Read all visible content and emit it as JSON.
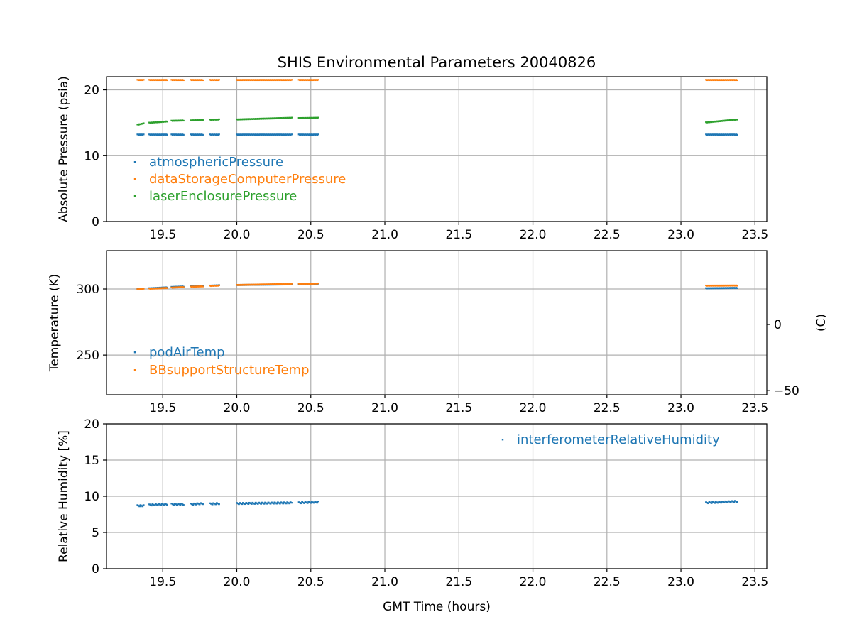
{
  "chart_data": {
    "type": "scatter",
    "title": "SHIS Environmental Parameters 20040826",
    "xlabel": "GMT Time (hours)",
    "xlim": [
      19.12,
      23.58
    ],
    "xticks": [
      19.5,
      20.0,
      20.5,
      21.0,
      21.5,
      22.0,
      22.5,
      23.0,
      23.5
    ],
    "xtick_labels": [
      "19.5",
      "20.0",
      "20.5",
      "21.0",
      "21.5",
      "22.0",
      "22.5",
      "23.0",
      "23.5"
    ],
    "grid": true,
    "time_segments": [
      [
        19.33,
        19.37
      ],
      [
        19.41,
        19.53
      ],
      [
        19.56,
        19.64
      ],
      [
        19.69,
        19.77
      ],
      [
        19.82,
        19.88
      ],
      [
        20.0,
        20.37
      ],
      [
        20.42,
        20.55
      ],
      [
        23.17,
        23.38
      ]
    ],
    "panels": [
      {
        "id": "pressure",
        "ylabel": "Absolute Pressure (psia)",
        "ylim": [
          0,
          22
        ],
        "yticks": [
          0,
          10,
          20
        ],
        "ytick_labels": [
          "0",
          "10",
          "20"
        ],
        "legend_location": "lower-left",
        "series": [
          {
            "name": "atmosphericPressure",
            "color": "#1f77b4",
            "y": [
              13.2,
              13.2,
              13.2,
              13.2,
              13.2,
              13.2,
              13.2,
              13.2
            ],
            "y_end": [
              13.2,
              13.2,
              13.2,
              13.2,
              13.2,
              13.2,
              13.2,
              13.2
            ]
          },
          {
            "name": "dataStorageComputerPressure",
            "color": "#ff7f0e",
            "y": [
              21.5,
              21.5,
              21.5,
              21.5,
              21.5,
              21.5,
              21.5,
              21.5
            ],
            "y_end": [
              21.5,
              21.5,
              21.5,
              21.5,
              21.5,
              21.5,
              21.5,
              21.5
            ]
          },
          {
            "name": "laserEnclosurePressure",
            "color": "#2ca02c",
            "y": [
              14.7,
              15.0,
              15.3,
              15.35,
              15.45,
              15.5,
              15.7,
              15.05
            ],
            "y_end": [
              14.9,
              15.2,
              15.35,
              15.45,
              15.5,
              15.75,
              15.75,
              15.5
            ]
          }
        ]
      },
      {
        "id": "temperature",
        "ylabel": "Temperature (K)",
        "ylim": [
          220,
          329
        ],
        "yticks": [
          250,
          300
        ],
        "ytick_labels": [
          "250",
          "300"
        ],
        "right_ylabel": "(C)",
        "right_yticks": [
          -50,
          0
        ],
        "right_ytick_labels": [
          "−50",
          "0"
        ],
        "legend_location": "lower-left",
        "series": [
          {
            "name": "podAirTemp",
            "color": "#1f77b4",
            "y": [
              300.0,
              300.5,
              301.5,
              302.0,
              302.5,
              303.0,
              303.5,
              300.5
            ],
            "y_end": [
              300.3,
              301.2,
              301.9,
              302.3,
              302.8,
              303.5,
              303.8,
              300.8
            ]
          },
          {
            "name": "BBsupportStructureTemp",
            "color": "#ff7f0e",
            "y": [
              299.7,
              300.2,
              301.0,
              301.7,
              302.3,
              303.0,
              303.8,
              302.5
            ],
            "y_end": [
              300.0,
              300.8,
              301.5,
              302.0,
              302.6,
              303.8,
              304.1,
              302.6
            ]
          }
        ]
      },
      {
        "id": "humidity",
        "ylabel": "Relative Humidity [%]",
        "ylim": [
          0,
          20
        ],
        "yticks": [
          0,
          5,
          10,
          15,
          20
        ],
        "ytick_labels": [
          "0",
          "5",
          "10",
          "15",
          "20"
        ],
        "legend_location": "upper-right",
        "series": [
          {
            "name": "interferometerRelativeHumidity",
            "color": "#1f77b4",
            "y": [
              8.7,
              8.8,
              8.9,
              8.9,
              8.95,
              9.0,
              9.1,
              9.1
            ],
            "y_end": [
              8.7,
              8.9,
              8.9,
              9.0,
              9.0,
              9.1,
              9.2,
              9.3
            ]
          }
        ]
      }
    ]
  }
}
